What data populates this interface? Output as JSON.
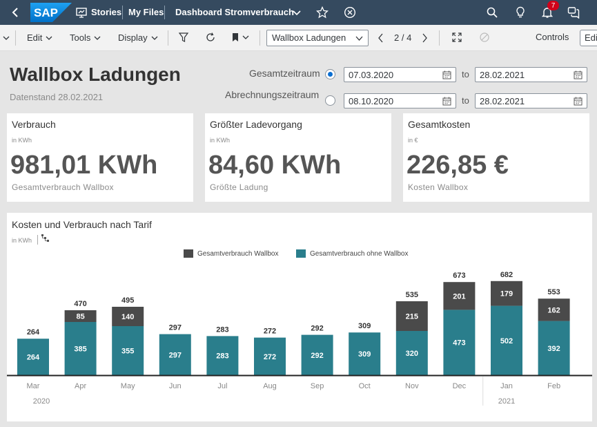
{
  "shell": {
    "logo_text": "SAP",
    "stories": "Stories",
    "my_files": "My Files",
    "title": "Dashboard Stromverbrauch",
    "notification_count": "7"
  },
  "toolbar": {
    "edit": "Edit",
    "tools": "Tools",
    "display": "Display",
    "page_select": "Wallbox Ladungen",
    "page_indicator": "2 / 4",
    "controls": "Controls",
    "edit_button": "Edit"
  },
  "header": {
    "title": "Wallbox Ladungen",
    "subtitle": "Datenstand 28.02.2021",
    "range1_label": "Gesamtzeitraum",
    "range1_from": "07.03.2020",
    "range1_to": "28.02.2021",
    "range2_label": "Abrechnungszeitraum",
    "range2_from": "08.10.2020",
    "range2_to": "28.02.2021",
    "to_label": "to"
  },
  "kpis": [
    {
      "title": "Verbrauch",
      "unit": "in KWh",
      "value": "981,01 KWh",
      "desc": "Gesamtverbrauch Wallbox"
    },
    {
      "title": "Größter Ladevorgang",
      "unit": "in KWh",
      "value": "84,60 KWh",
      "desc": "Größte Ladung"
    },
    {
      "title": "Gesamtkosten",
      "unit": "in €",
      "value": "226,85 €",
      "desc": "Kosten Wallbox"
    }
  ],
  "chart_card": {
    "title": "Kosten und Verbrauch nach Tarif",
    "unit": "in KWh"
  },
  "colors": {
    "wallbox": "#4a4a4a",
    "ohne_wallbox": "#2a7e8c",
    "shell_bg": "#354a5f"
  },
  "chart_data": {
    "type": "bar",
    "stacked": true,
    "categories": [
      "Mar",
      "Apr",
      "May",
      "Jun",
      "Jul",
      "Aug",
      "Sep",
      "Oct",
      "Nov",
      "Dec",
      "Jan",
      "Feb"
    ],
    "year_labels": [
      {
        "label": "2020",
        "months": [
          "Mar",
          "Apr",
          "May",
          "Jun",
          "Jul",
          "Aug",
          "Sep",
          "Oct",
          "Nov",
          "Dec"
        ]
      },
      {
        "label": "2021",
        "months": [
          "Jan",
          "Feb"
        ]
      }
    ],
    "series": [
      {
        "name": "Gesamtverbrauch ohne Wallbox",
        "values": [
          264,
          385,
          355,
          297,
          283,
          272,
          292,
          309,
          320,
          473,
          502,
          392
        ]
      },
      {
        "name": "Gesamtverbrauch Wallbox",
        "values": [
          0,
          85,
          140,
          0,
          0,
          0,
          0,
          0,
          215,
          201,
          179,
          162
        ]
      }
    ],
    "totals": [
      264,
      470,
      495,
      297,
      283,
      272,
      292,
      309,
      535,
      673,
      682,
      553
    ],
    "legend_order": [
      "Gesamtverbrauch Wallbox",
      "Gesamtverbrauch ohne Wallbox"
    ],
    "legend_position": "top",
    "ylim": [
      0,
      700
    ],
    "grid": false
  }
}
